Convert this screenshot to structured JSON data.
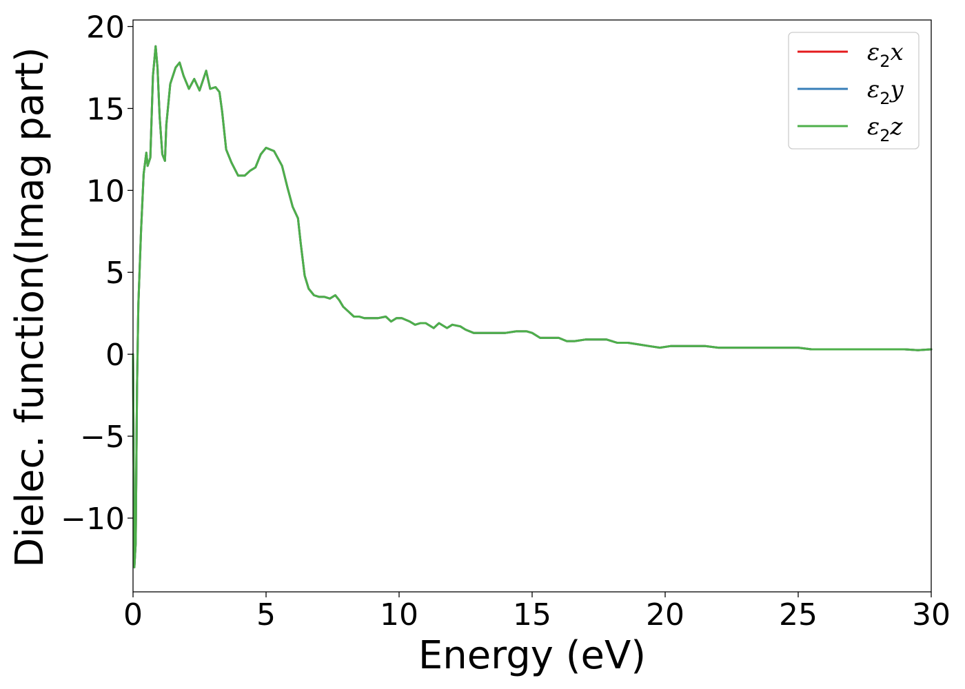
{
  "chart_data": {
    "type": "line",
    "title": "",
    "xlabel": "Energy (eV)",
    "ylabel": "Dielec. function(Imag part)",
    "xlim": [
      0,
      30
    ],
    "ylim": [
      -14.5,
      20.4
    ],
    "xticks": [
      0,
      5,
      10,
      15,
      20,
      25,
      30
    ],
    "yticks": [
      -10,
      -5,
      0,
      5,
      10,
      15,
      20
    ],
    "xtick_labels": [
      "0",
      "5",
      "10",
      "15",
      "20",
      "25",
      "30"
    ],
    "ytick_labels": [
      "−10",
      "−5",
      "0",
      "5",
      "10",
      "15",
      "20"
    ],
    "grid": false,
    "legend_position": "top-right",
    "series": [
      {
        "name": "ε₂x",
        "name_base": "ε",
        "name_sub": "2",
        "name_suffix": "x",
        "color": "#e41a1c",
        "x": [
          0.0,
          0.05,
          0.1,
          0.15,
          0.2,
          0.3,
          0.4,
          0.5,
          0.55,
          0.65,
          0.75,
          0.85,
          0.92,
          1.0,
          1.1,
          1.2,
          1.25,
          1.4,
          1.6,
          1.75,
          1.9,
          2.1,
          2.3,
          2.5,
          2.75,
          2.9,
          3.1,
          3.25,
          3.35,
          3.5,
          3.7,
          3.95,
          4.2,
          4.4,
          4.6,
          4.8,
          5.0,
          5.3,
          5.6,
          5.8,
          6.0,
          6.2,
          6.3,
          6.45,
          6.6,
          6.8,
          7.0,
          7.2,
          7.4,
          7.6,
          7.75,
          7.9,
          8.1,
          8.3,
          8.5,
          8.7,
          8.9,
          9.2,
          9.5,
          9.7,
          9.9,
          10.1,
          10.4,
          10.6,
          10.8,
          11.0,
          11.3,
          11.5,
          11.8,
          12.0,
          12.3,
          12.5,
          12.8,
          13.0,
          13.3,
          13.6,
          14.0,
          14.4,
          14.8,
          15.0,
          15.3,
          15.6,
          16.0,
          16.3,
          16.6,
          17.0,
          17.5,
          17.8,
          18.2,
          18.6,
          19.0,
          19.4,
          19.8,
          20.2,
          20.6,
          21.0,
          21.5,
          22.0,
          22.5,
          23.0,
          23.5,
          24.0,
          24.5,
          25.0,
          25.5,
          26.0,
          26.5,
          27.0,
          27.5,
          28.0,
          28.5,
          29.0,
          29.5,
          30.0
        ],
        "y": [
          0.0,
          -13.0,
          -11.5,
          -2.0,
          3.0,
          7.5,
          11.0,
          12.3,
          11.5,
          12.0,
          17.0,
          18.8,
          17.5,
          14.5,
          12.2,
          11.8,
          14.0,
          16.5,
          17.5,
          17.8,
          17.0,
          16.2,
          16.8,
          16.1,
          17.3,
          16.2,
          16.3,
          16.0,
          14.8,
          12.5,
          11.7,
          10.9,
          10.9,
          11.2,
          11.4,
          12.2,
          12.6,
          12.4,
          11.5,
          10.2,
          9.0,
          8.3,
          6.8,
          4.8,
          4.0,
          3.6,
          3.5,
          3.5,
          3.4,
          3.6,
          3.3,
          2.9,
          2.6,
          2.3,
          2.3,
          2.2,
          2.2,
          2.2,
          2.3,
          2.0,
          2.2,
          2.2,
          2.0,
          1.8,
          1.9,
          1.9,
          1.6,
          1.9,
          1.6,
          1.8,
          1.7,
          1.5,
          1.3,
          1.3,
          1.3,
          1.3,
          1.3,
          1.4,
          1.4,
          1.3,
          1.0,
          1.0,
          1.0,
          0.8,
          0.8,
          0.9,
          0.9,
          0.9,
          0.7,
          0.7,
          0.6,
          0.5,
          0.4,
          0.5,
          0.5,
          0.5,
          0.5,
          0.4,
          0.4,
          0.4,
          0.4,
          0.4,
          0.4,
          0.4,
          0.3,
          0.3,
          0.3,
          0.3,
          0.3,
          0.3,
          0.3,
          0.3,
          0.25,
          0.3
        ]
      },
      {
        "name": "ε₂y",
        "name_base": "ε",
        "name_sub": "2",
        "name_suffix": "y",
        "color": "#377eb8",
        "x": [
          0.0,
          0.05,
          0.1,
          0.15,
          0.2,
          0.3,
          0.4,
          0.5,
          0.55,
          0.65,
          0.75,
          0.85,
          0.92,
          1.0,
          1.1,
          1.2,
          1.25,
          1.4,
          1.6,
          1.75,
          1.9,
          2.1,
          2.3,
          2.5,
          2.75,
          2.9,
          3.1,
          3.25,
          3.35,
          3.5,
          3.7,
          3.95,
          4.2,
          4.4,
          4.6,
          4.8,
          5.0,
          5.3,
          5.6,
          5.8,
          6.0,
          6.2,
          6.3,
          6.45,
          6.6,
          6.8,
          7.0,
          7.2,
          7.4,
          7.6,
          7.75,
          7.9,
          8.1,
          8.3,
          8.5,
          8.7,
          8.9,
          9.2,
          9.5,
          9.7,
          9.9,
          10.1,
          10.4,
          10.6,
          10.8,
          11.0,
          11.3,
          11.5,
          11.8,
          12.0,
          12.3,
          12.5,
          12.8,
          13.0,
          13.3,
          13.6,
          14.0,
          14.4,
          14.8,
          15.0,
          15.3,
          15.6,
          16.0,
          16.3,
          16.6,
          17.0,
          17.5,
          17.8,
          18.2,
          18.6,
          19.0,
          19.4,
          19.8,
          20.2,
          20.6,
          21.0,
          21.5,
          22.0,
          22.5,
          23.0,
          23.5,
          24.0,
          24.5,
          25.0,
          25.5,
          26.0,
          26.5,
          27.0,
          27.5,
          28.0,
          28.5,
          29.0,
          29.5,
          30.0
        ],
        "y": [
          0.0,
          -13.0,
          -11.5,
          -2.0,
          3.0,
          7.5,
          11.0,
          12.3,
          11.5,
          12.0,
          17.0,
          18.8,
          17.5,
          14.5,
          12.2,
          11.8,
          14.0,
          16.5,
          17.5,
          17.8,
          17.0,
          16.2,
          16.8,
          16.1,
          17.3,
          16.2,
          16.3,
          16.0,
          14.8,
          12.5,
          11.7,
          10.9,
          10.9,
          11.2,
          11.4,
          12.2,
          12.6,
          12.4,
          11.5,
          10.2,
          9.0,
          8.3,
          6.8,
          4.8,
          4.0,
          3.6,
          3.5,
          3.5,
          3.4,
          3.6,
          3.3,
          2.9,
          2.6,
          2.3,
          2.3,
          2.2,
          2.2,
          2.2,
          2.3,
          2.0,
          2.2,
          2.2,
          2.0,
          1.8,
          1.9,
          1.9,
          1.6,
          1.9,
          1.6,
          1.8,
          1.7,
          1.5,
          1.3,
          1.3,
          1.3,
          1.3,
          1.3,
          1.4,
          1.4,
          1.3,
          1.0,
          1.0,
          1.0,
          0.8,
          0.8,
          0.9,
          0.9,
          0.9,
          0.7,
          0.7,
          0.6,
          0.5,
          0.4,
          0.5,
          0.5,
          0.5,
          0.5,
          0.4,
          0.4,
          0.4,
          0.4,
          0.4,
          0.4,
          0.4,
          0.3,
          0.3,
          0.3,
          0.3,
          0.3,
          0.3,
          0.3,
          0.3,
          0.25,
          0.3
        ]
      },
      {
        "name": "ε₂z",
        "name_base": "ε",
        "name_sub": "2",
        "name_suffix": "z",
        "color": "#4daf4a",
        "x": [
          0.0,
          0.05,
          0.1,
          0.15,
          0.2,
          0.3,
          0.4,
          0.5,
          0.55,
          0.65,
          0.75,
          0.85,
          0.92,
          1.0,
          1.1,
          1.2,
          1.25,
          1.4,
          1.6,
          1.75,
          1.9,
          2.1,
          2.3,
          2.5,
          2.75,
          2.9,
          3.1,
          3.25,
          3.35,
          3.5,
          3.7,
          3.95,
          4.2,
          4.4,
          4.6,
          4.8,
          5.0,
          5.3,
          5.6,
          5.8,
          6.0,
          6.2,
          6.3,
          6.45,
          6.6,
          6.8,
          7.0,
          7.2,
          7.4,
          7.6,
          7.75,
          7.9,
          8.1,
          8.3,
          8.5,
          8.7,
          8.9,
          9.2,
          9.5,
          9.7,
          9.9,
          10.1,
          10.4,
          10.6,
          10.8,
          11.0,
          11.3,
          11.5,
          11.8,
          12.0,
          12.3,
          12.5,
          12.8,
          13.0,
          13.3,
          13.6,
          14.0,
          14.4,
          14.8,
          15.0,
          15.3,
          15.6,
          16.0,
          16.3,
          16.6,
          17.0,
          17.5,
          17.8,
          18.2,
          18.6,
          19.0,
          19.4,
          19.8,
          20.2,
          20.6,
          21.0,
          21.5,
          22.0,
          22.5,
          23.0,
          23.5,
          24.0,
          24.5,
          25.0,
          25.5,
          26.0,
          26.5,
          27.0,
          27.5,
          28.0,
          28.5,
          29.0,
          29.5,
          30.0
        ],
        "y": [
          0.0,
          -13.0,
          -11.5,
          -2.0,
          3.0,
          7.5,
          11.0,
          12.3,
          11.5,
          12.0,
          17.0,
          18.8,
          17.5,
          14.5,
          12.2,
          11.8,
          14.0,
          16.5,
          17.5,
          17.8,
          17.0,
          16.2,
          16.8,
          16.1,
          17.3,
          16.2,
          16.3,
          16.0,
          14.8,
          12.5,
          11.7,
          10.9,
          10.9,
          11.2,
          11.4,
          12.2,
          12.6,
          12.4,
          11.5,
          10.2,
          9.0,
          8.3,
          6.8,
          4.8,
          4.0,
          3.6,
          3.5,
          3.5,
          3.4,
          3.6,
          3.3,
          2.9,
          2.6,
          2.3,
          2.3,
          2.2,
          2.2,
          2.2,
          2.3,
          2.0,
          2.2,
          2.2,
          2.0,
          1.8,
          1.9,
          1.9,
          1.6,
          1.9,
          1.6,
          1.8,
          1.7,
          1.5,
          1.3,
          1.3,
          1.3,
          1.3,
          1.3,
          1.4,
          1.4,
          1.3,
          1.0,
          1.0,
          1.0,
          0.8,
          0.8,
          0.9,
          0.9,
          0.9,
          0.7,
          0.7,
          0.6,
          0.5,
          0.4,
          0.5,
          0.5,
          0.5,
          0.5,
          0.4,
          0.4,
          0.4,
          0.4,
          0.4,
          0.4,
          0.4,
          0.3,
          0.3,
          0.3,
          0.3,
          0.3,
          0.3,
          0.3,
          0.3,
          0.25,
          0.3
        ]
      }
    ]
  }
}
